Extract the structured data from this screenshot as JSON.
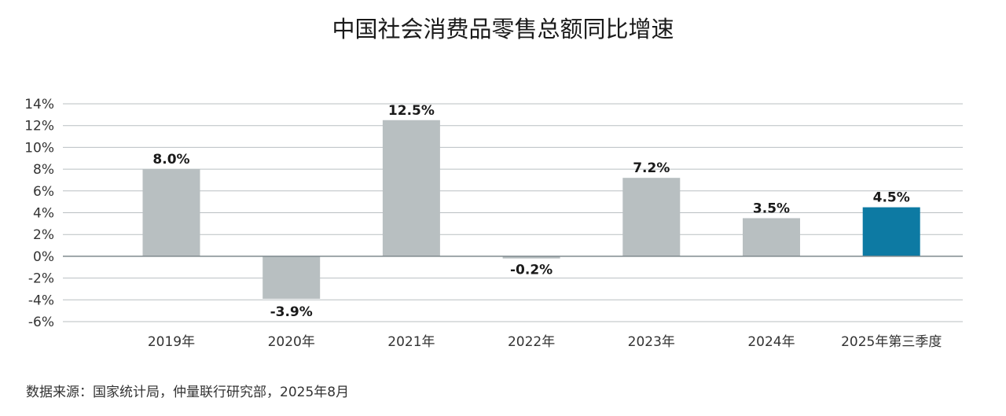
{
  "chart_data": {
    "type": "bar",
    "title": "中国社会消费品零售总额同比增速",
    "categories": [
      "2019年",
      "2020年",
      "2021年",
      "2022年",
      "2023年",
      "2024年",
      "2025年第三季度"
    ],
    "values": [
      8.0,
      -3.9,
      12.5,
      -0.2,
      7.2,
      3.5,
      4.5
    ],
    "data_labels": [
      "8.0%",
      "-3.9%",
      "12.5%",
      "-0.2%",
      "7.2%",
      "3.5%",
      "4.5%"
    ],
    "ylim": [
      -6,
      14
    ],
    "yticks": [
      14,
      12,
      10,
      8,
      6,
      4,
      2,
      0,
      -2,
      -4,
      -6
    ],
    "ytick_labels": [
      "14%",
      "12%",
      "10%",
      "8%",
      "6%",
      "4%",
      "2%",
      "0%",
      "-2%",
      "-4%",
      "-6%"
    ],
    "grid": true,
    "colors": {
      "default": "#b8bfc1",
      "highlight": "#0d7aa3",
      "grid": "#b9bfc2",
      "zero_line": "#7f8a8e"
    },
    "highlight_index": 6
  },
  "source": "数据来源：国家统计局，仲量联行研究部，2025年8月"
}
